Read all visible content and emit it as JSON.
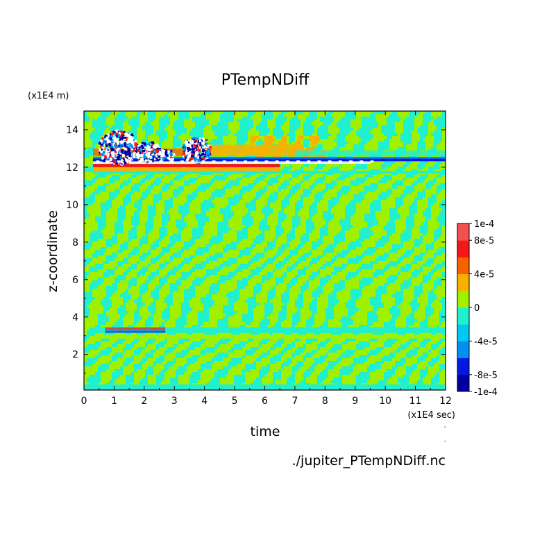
{
  "chart_data": {
    "type": "heatmap",
    "title": "PTempNDiff",
    "xlabel": "time",
    "ylabel": "z-coordinate",
    "x_unit": "(x1E4 sec)",
    "y_unit": "(x1E4 m)",
    "xlim": [
      0,
      12
    ],
    "ylim": [
      0.1,
      15
    ],
    "x_ticks": [
      "0",
      "1",
      "2",
      "3",
      "4",
      "5",
      "6",
      "7",
      "8",
      "9",
      "10",
      "11",
      "12"
    ],
    "y_ticks": [
      "2",
      "4",
      "6",
      "8",
      "10",
      "12",
      "14"
    ],
    "colorbar": {
      "range": [
        -0.0001,
        0.0001
      ],
      "labels": [
        "1e-4",
        "8e-5",
        "4e-5",
        "0",
        "-4e-5",
        "-8e-5",
        "-1e-4"
      ],
      "colors": [
        "#0000a0",
        "#0018e0",
        "#0090f0",
        "#00c8f0",
        "#20f0d0",
        "#a0f000",
        "#f8b000",
        "#f86000",
        "#f01818",
        "#f05050"
      ]
    },
    "grid": false,
    "source_file": "./jupiter_PTempNDiff.nc"
  }
}
